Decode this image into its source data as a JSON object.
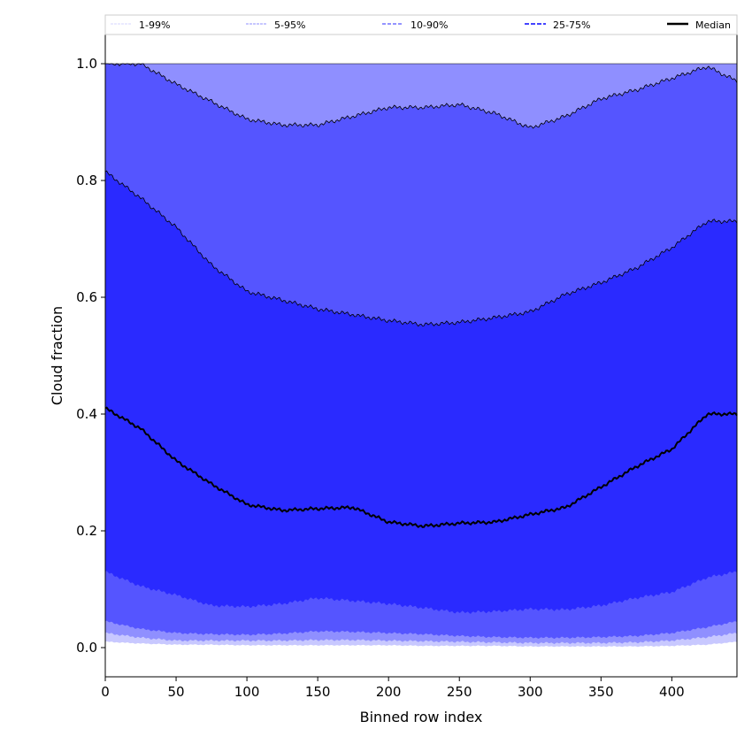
{
  "chart_data": {
    "type": "area",
    "title": "",
    "xlabel": "Binned row index",
    "ylabel": "Cloud fraction",
    "xlim": [
      0,
      446
    ],
    "ylim": [
      -0.05,
      1.05
    ],
    "xticks": [
      "0",
      "50",
      "100",
      "150",
      "200",
      "250",
      "300",
      "350",
      "400"
    ],
    "yticks": [
      "0.0",
      "0.2",
      "0.4",
      "0.6",
      "0.8",
      "1.0"
    ],
    "legend_position": "top",
    "legend": [
      "1-99%",
      "5-95%",
      "10-90%",
      "25-75%",
      "Median"
    ],
    "colors": {
      "band_1_99": "#c8c8ff",
      "band_5_95": "#8f8fff",
      "band_10_90": "#5555ff",
      "band_25_75": "#2a2aff",
      "median": "#000000"
    },
    "x": [
      0,
      25,
      50,
      75,
      100,
      125,
      150,
      175,
      200,
      225,
      250,
      275,
      300,
      325,
      350,
      375,
      400,
      425,
      446
    ],
    "series": [
      {
        "name": "p1",
        "values": [
          0.01,
          0.007,
          0.005,
          0.005,
          0.004,
          0.004,
          0.004,
          0.004,
          0.004,
          0.003,
          0.003,
          0.003,
          0.002,
          0.002,
          0.002,
          0.002,
          0.003,
          0.005,
          0.01
        ]
      },
      {
        "name": "p5",
        "values": [
          0.025,
          0.017,
          0.012,
          0.012,
          0.012,
          0.012,
          0.013,
          0.013,
          0.012,
          0.011,
          0.01,
          0.009,
          0.008,
          0.008,
          0.008,
          0.009,
          0.012,
          0.018,
          0.025
        ]
      },
      {
        "name": "p10",
        "values": [
          0.045,
          0.032,
          0.025,
          0.023,
          0.022,
          0.024,
          0.028,
          0.027,
          0.025,
          0.023,
          0.02,
          0.018,
          0.017,
          0.017,
          0.018,
          0.02,
          0.025,
          0.035,
          0.045
        ]
      },
      {
        "name": "p25",
        "values": [
          0.13,
          0.105,
          0.09,
          0.072,
          0.07,
          0.075,
          0.085,
          0.08,
          0.075,
          0.068,
          0.06,
          0.062,
          0.066,
          0.065,
          0.072,
          0.085,
          0.095,
          0.12,
          0.13
        ]
      },
      {
        "name": "Median",
        "values": [
          0.41,
          0.375,
          0.32,
          0.28,
          0.245,
          0.235,
          0.238,
          0.24,
          0.215,
          0.208,
          0.213,
          0.215,
          0.228,
          0.24,
          0.275,
          0.31,
          0.34,
          0.4,
          0.4
        ]
      },
      {
        "name": "p75",
        "values": [
          0.815,
          0.77,
          0.72,
          0.655,
          0.61,
          0.595,
          0.58,
          0.57,
          0.56,
          0.553,
          0.557,
          0.565,
          0.575,
          0.605,
          0.625,
          0.65,
          0.685,
          0.73,
          0.73
        ]
      },
      {
        "name": "p90",
        "values": [
          1.0,
          1.0,
          0.965,
          0.935,
          0.905,
          0.895,
          0.895,
          0.91,
          0.925,
          0.925,
          0.93,
          0.915,
          0.89,
          0.91,
          0.94,
          0.955,
          0.975,
          0.995,
          0.97
        ]
      },
      {
        "name": "p95",
        "values": [
          1,
          1,
          1,
          1,
          1,
          1,
          1,
          1,
          1,
          1,
          1,
          1,
          1,
          1,
          1,
          1,
          1,
          1,
          1
        ]
      },
      {
        "name": "p99",
        "values": [
          1,
          1,
          1,
          1,
          1,
          1,
          1,
          1,
          1,
          1,
          1,
          1,
          1,
          1,
          1,
          1,
          1,
          1,
          1
        ]
      }
    ]
  }
}
